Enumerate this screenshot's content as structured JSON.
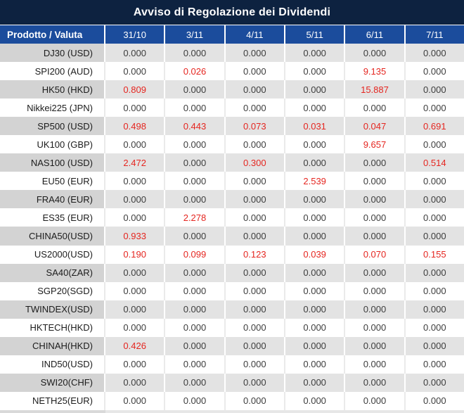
{
  "header": {
    "title": "Avviso di Regolazione dei Dividendi"
  },
  "colors": {
    "title_bg": "#0d2240",
    "header_bg": "#1b4c9c",
    "row_alt_label_bg": "#d3d3d3",
    "row_alt_cell_bg": "#e3e3e3",
    "value_text": "#3d3d3d",
    "highlight_red": "#e52620"
  },
  "table": {
    "columns": [
      "Prodotto / Valuta",
      "31/10",
      "3/11",
      "4/11",
      "5/11",
      "6/11",
      "7/11"
    ],
    "rows": [
      {
        "product": "DJ30 (USD)",
        "values": [
          "0.000",
          "0.000",
          "0.000",
          "0.000",
          "0.000",
          "0.000"
        ],
        "red": [
          false,
          false,
          false,
          false,
          false,
          false
        ]
      },
      {
        "product": "SPI200 (AUD)",
        "values": [
          "0.000",
          "0.026",
          "0.000",
          "0.000",
          "9.135",
          "0.000"
        ],
        "red": [
          false,
          true,
          false,
          false,
          true,
          false
        ]
      },
      {
        "product": "HK50 (HKD)",
        "values": [
          "0.809",
          "0.000",
          "0.000",
          "0.000",
          "15.887",
          "0.000"
        ],
        "red": [
          true,
          false,
          false,
          false,
          true,
          false
        ]
      },
      {
        "product": "Nikkei225 (JPN)",
        "values": [
          "0.000",
          "0.000",
          "0.000",
          "0.000",
          "0.000",
          "0.000"
        ],
        "red": [
          false,
          false,
          false,
          false,
          false,
          false
        ]
      },
      {
        "product": "SP500 (USD)",
        "values": [
          "0.498",
          "0.443",
          "0.073",
          "0.031",
          "0.047",
          "0.691"
        ],
        "red": [
          true,
          true,
          true,
          true,
          true,
          true
        ]
      },
      {
        "product": "UK100 (GBP)",
        "values": [
          "0.000",
          "0.000",
          "0.000",
          "0.000",
          "9.657",
          "0.000"
        ],
        "red": [
          false,
          false,
          false,
          false,
          true,
          false
        ]
      },
      {
        "product": "NAS100 (USD)",
        "values": [
          "2.472",
          "0.000",
          "0.300",
          "0.000",
          "0.000",
          "0.514"
        ],
        "red": [
          true,
          false,
          true,
          false,
          false,
          true
        ]
      },
      {
        "product": "EU50 (EUR)",
        "values": [
          "0.000",
          "0.000",
          "0.000",
          "2.539",
          "0.000",
          "0.000"
        ],
        "red": [
          false,
          false,
          false,
          true,
          false,
          false
        ]
      },
      {
        "product": "FRA40 (EUR)",
        "values": [
          "0.000",
          "0.000",
          "0.000",
          "0.000",
          "0.000",
          "0.000"
        ],
        "red": [
          false,
          false,
          false,
          false,
          false,
          false
        ]
      },
      {
        "product": "ES35 (EUR)",
        "values": [
          "0.000",
          "2.278",
          "0.000",
          "0.000",
          "0.000",
          "0.000"
        ],
        "red": [
          false,
          true,
          false,
          false,
          false,
          false
        ]
      },
      {
        "product": "CHINA50(USD)",
        "values": [
          "0.933",
          "0.000",
          "0.000",
          "0.000",
          "0.000",
          "0.000"
        ],
        "red": [
          true,
          false,
          false,
          false,
          false,
          false
        ]
      },
      {
        "product": "US2000(USD)",
        "values": [
          "0.190",
          "0.099",
          "0.123",
          "0.039",
          "0.070",
          "0.155"
        ],
        "red": [
          true,
          true,
          true,
          true,
          true,
          true
        ]
      },
      {
        "product": "SA40(ZAR)",
        "values": [
          "0.000",
          "0.000",
          "0.000",
          "0.000",
          "0.000",
          "0.000"
        ],
        "red": [
          false,
          false,
          false,
          false,
          false,
          false
        ]
      },
      {
        "product": "SGP20(SGD)",
        "values": [
          "0.000",
          "0.000",
          "0.000",
          "0.000",
          "0.000",
          "0.000"
        ],
        "red": [
          false,
          false,
          false,
          false,
          false,
          false
        ]
      },
      {
        "product": "TWINDEX(USD)",
        "values": [
          "0.000",
          "0.000",
          "0.000",
          "0.000",
          "0.000",
          "0.000"
        ],
        "red": [
          false,
          false,
          false,
          false,
          false,
          false
        ]
      },
      {
        "product": "HKTECH(HKD)",
        "values": [
          "0.000",
          "0.000",
          "0.000",
          "0.000",
          "0.000",
          "0.000"
        ],
        "red": [
          false,
          false,
          false,
          false,
          false,
          false
        ]
      },
      {
        "product": "CHINAH(HKD)",
        "values": [
          "0.426",
          "0.000",
          "0.000",
          "0.000",
          "0.000",
          "0.000"
        ],
        "red": [
          true,
          false,
          false,
          false,
          false,
          false
        ]
      },
      {
        "product": "IND50(USD)",
        "values": [
          "0.000",
          "0.000",
          "0.000",
          "0.000",
          "0.000",
          "0.000"
        ],
        "red": [
          false,
          false,
          false,
          false,
          false,
          false
        ]
      },
      {
        "product": "SWI20(CHF)",
        "values": [
          "0.000",
          "0.000",
          "0.000",
          "0.000",
          "0.000",
          "0.000"
        ],
        "red": [
          false,
          false,
          false,
          false,
          false,
          false
        ]
      },
      {
        "product": "NETH25(EUR)",
        "values": [
          "0.000",
          "0.000",
          "0.000",
          "0.000",
          "0.000",
          "0.000"
        ],
        "red": [
          false,
          false,
          false,
          false,
          false,
          false
        ]
      }
    ]
  }
}
